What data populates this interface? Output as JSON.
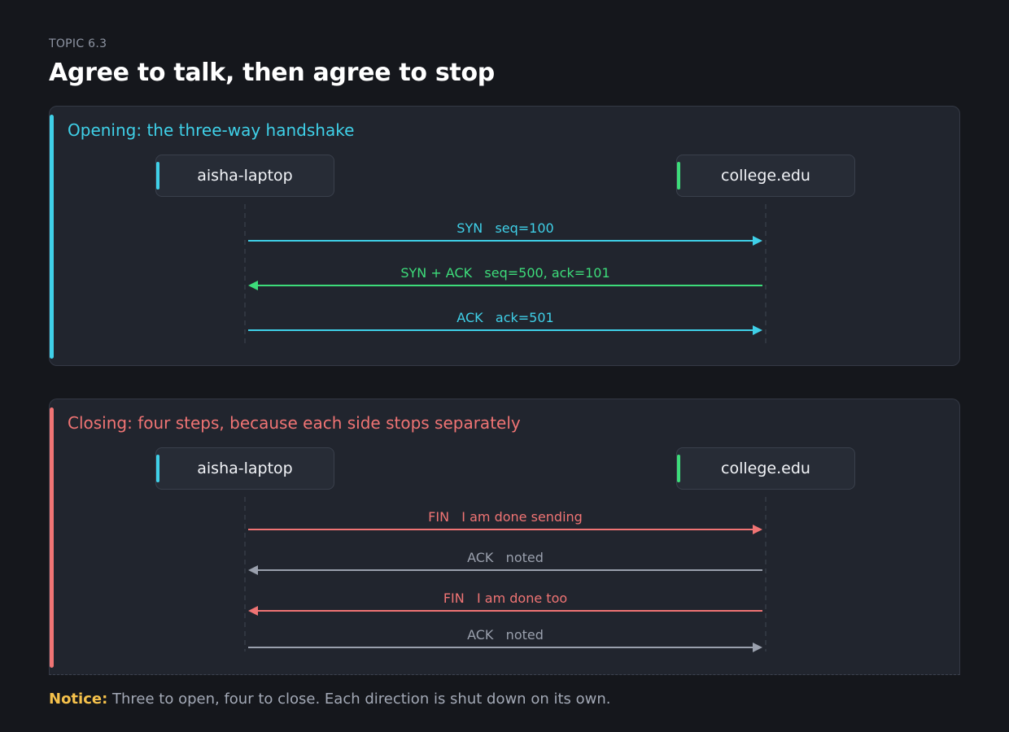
{
  "header": {
    "kicker": "TOPIC 6.3",
    "title": "Agree to talk, then agree to stop"
  },
  "colors": {
    "cyan": "#3fd0e8",
    "green": "#3ddc7a",
    "red": "#f07474",
    "gray": "#9aa0ad",
    "notice": "#f5c14b"
  },
  "opening": {
    "title": "Opening: the three-way handshake",
    "left_node": "aisha-laptop",
    "right_node": "college.edu",
    "messages": [
      {
        "label": "SYN   seq=100",
        "direction": "right",
        "color": "#3fd0e8"
      },
      {
        "label": "SYN + ACK   seq=500, ack=101",
        "direction": "left",
        "color": "#3ddc7a"
      },
      {
        "label": "ACK   ack=501",
        "direction": "right",
        "color": "#3fd0e8"
      }
    ]
  },
  "closing": {
    "title": "Closing: four steps, because each side stops separately",
    "left_node": "aisha-laptop",
    "right_node": "college.edu",
    "messages": [
      {
        "label": "FIN   I am done sending",
        "direction": "right",
        "color": "#f07474"
      },
      {
        "label": "ACK   noted",
        "direction": "left",
        "color": "#9aa0ad"
      },
      {
        "label": "FIN   I am done too",
        "direction": "left",
        "color": "#f07474"
      },
      {
        "label": "ACK   noted",
        "direction": "right",
        "color": "#9aa0ad"
      }
    ]
  },
  "footer": {
    "notice_label": "Notice:",
    "text": " Three to open, four to close. Each direction is shut down on its own."
  }
}
